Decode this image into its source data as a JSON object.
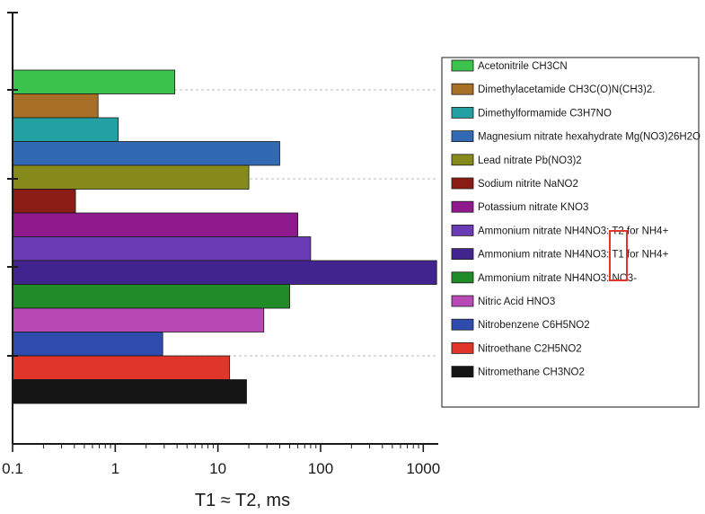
{
  "chart_data": {
    "type": "bar",
    "orientation": "horizontal",
    "xscale": "log",
    "xlim": [
      0.1,
      1400
    ],
    "xlabel": "T1 ≈ T2, ms",
    "xticks": [
      "0.1",
      "1",
      "10",
      "100",
      "1000"
    ],
    "grid": "dashed horizontal lines at group boundaries",
    "legend_position": "right",
    "series": [
      {
        "name": "Acetonitrile CH3CN",
        "value": 3.8,
        "color": "#3cc34e"
      },
      {
        "name": "Dimethylacetamide CH3C(O)N(CH3)2.",
        "value": 0.68,
        "color": "#a86f26"
      },
      {
        "name": "Dimethylformamide C3H7NO",
        "value": 1.07,
        "color": "#23a0a2"
      },
      {
        "name": "Magnesium nitrate hexahydrate Mg(NO3)26H2O",
        "value": 40,
        "color": "#3269b3"
      },
      {
        "name": "Lead nitrate Pb(NO3)2",
        "value": 20,
        "color": "#858a1a"
      },
      {
        "name": "Sodium nitrite NaNO2",
        "value": 0.41,
        "color": "#8a1c16"
      },
      {
        "name": "Potassium nitrate KNO3",
        "value": 60,
        "color": "#8f1a8e"
      },
      {
        "name": "Ammonium nitrate NH4NO3: T2 for NH4+",
        "value": 80,
        "color": "#6b3bb5"
      },
      {
        "name": "Ammonium nitrate NH4NO3: T1 for NH4+",
        "value": 1350,
        "color": "#42248f"
      },
      {
        "name": "Ammonium nitrate NH4NO3: NO3-",
        "value": 50,
        "color": "#218b28"
      },
      {
        "name": "Nitric Acid HNO3",
        "value": 28,
        "color": "#b84ab6"
      },
      {
        "name": "Nitrobenzene C6H5NO2",
        "value": 2.9,
        "color": "#2e4cad"
      },
      {
        "name": "Nitroethane C2H5NO2",
        "value": 13,
        "color": "#e0362a"
      },
      {
        "name": "Nitromethane CH3NO2",
        "value": 19,
        "color": "#141414"
      }
    ],
    "annotation": "red box highlighting T2 / T1 in Ammonium nitrate legend entries"
  },
  "colors": {
    "axis": "#1a1a1a",
    "grid": "#b8b8b8",
    "highlight": "#e0362a",
    "bar_stroke": "#1a1a1a"
  }
}
